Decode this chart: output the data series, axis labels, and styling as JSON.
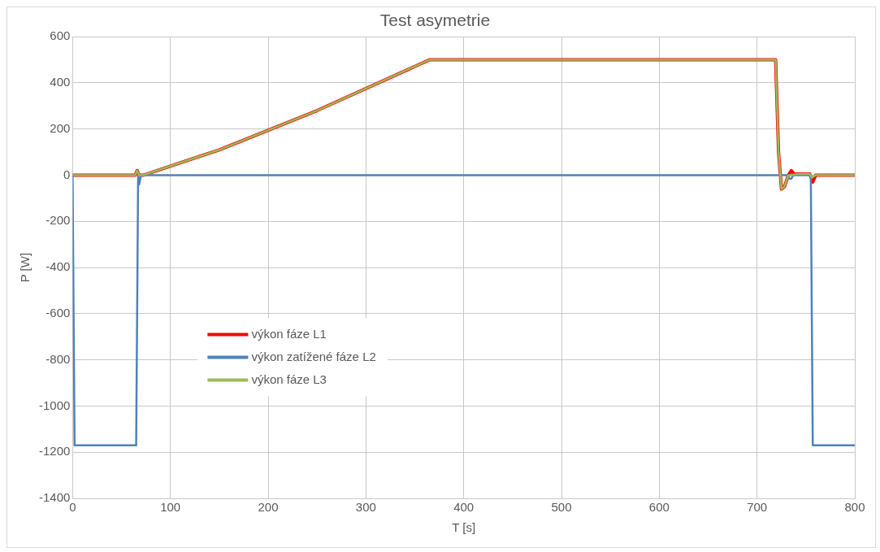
{
  "chart_data": {
    "type": "line",
    "title": "Test asymetrie",
    "xlabel": "T [s]",
    "ylabel": "P [W]",
    "xlim": [
      0,
      800
    ],
    "xticks": [
      0,
      100,
      200,
      300,
      400,
      500,
      600,
      700,
      800
    ],
    "ylim": [
      -1400,
      600
    ],
    "yticks": [
      -1400,
      -1200,
      -1000,
      -800,
      -600,
      -400,
      -200,
      0,
      200,
      400,
      600
    ],
    "grid": true,
    "legend": "center left",
    "marker": "none",
    "line_style": "solid",
    "series": [
      {
        "name": "výkon fáze L1",
        "color": "#ff0000",
        "x": [
          0,
          64,
          66,
          68,
          72,
          150,
          250,
          365,
          500,
          600,
          719,
          722,
          725,
          728,
          732,
          735,
          738,
          745,
          754,
          757,
          760,
          800
        ],
        "values": [
          0,
          0,
          20,
          0,
          0,
          110,
          280,
          500,
          500,
          500,
          500,
          100,
          -60,
          -50,
          0,
          20,
          5,
          5,
          5,
          -30,
          0,
          0
        ]
      },
      {
        "name": "výkon zatížené fáze L2",
        "color": "#4f81bd",
        "x": [
          0,
          1,
          2,
          65,
          66,
          67,
          68,
          70,
          200,
          400,
          600,
          730,
          733,
          735,
          737,
          740,
          755,
          756,
          757,
          800
        ],
        "values": [
          0,
          -600,
          -1170,
          -1170,
          -600,
          0,
          -40,
          0,
          0,
          0,
          0,
          0,
          -15,
          -15,
          0,
          0,
          0,
          -600,
          -1170,
          -1170
        ]
      },
      {
        "name": "výkon fáze L3",
        "color": "#9bbb59",
        "x": [
          0,
          64,
          66,
          68,
          72,
          150,
          250,
          365,
          500,
          600,
          719,
          722,
          725,
          728,
          732,
          735,
          740,
          754,
          756,
          760,
          800
        ],
        "values": [
          0,
          0,
          20,
          0,
          0,
          110,
          280,
          500,
          500,
          500,
          500,
          100,
          -60,
          -50,
          0,
          0,
          5,
          5,
          -10,
          0,
          0
        ]
      }
    ]
  }
}
